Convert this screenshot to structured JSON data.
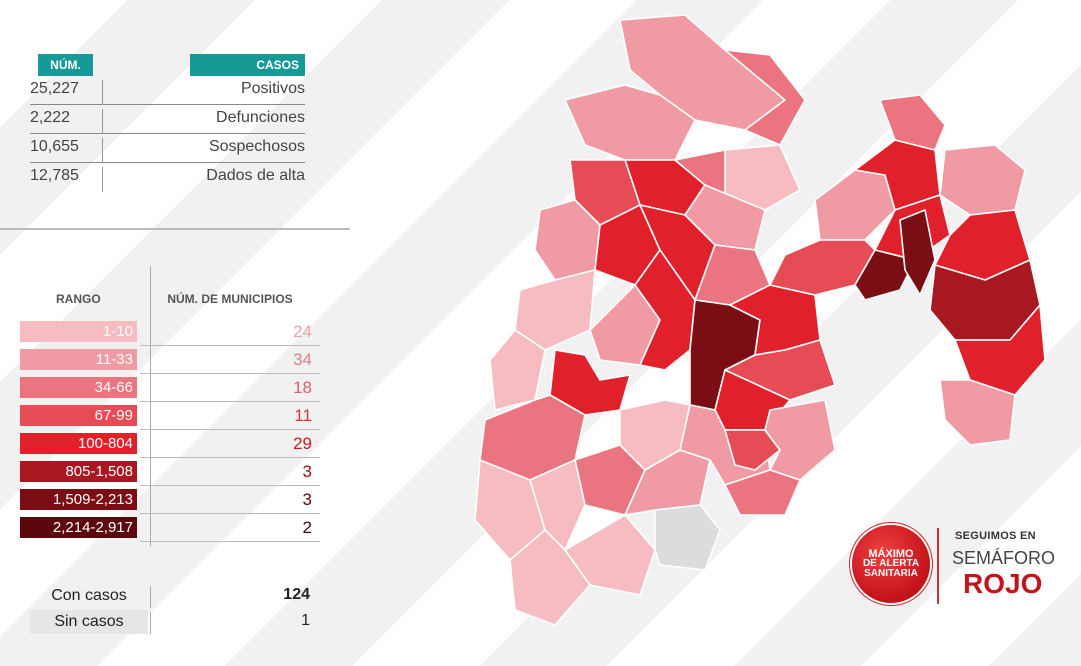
{
  "stats": {
    "header_num": "NÚM.",
    "header_casos": "CASOS",
    "rows": [
      {
        "num": "25,227",
        "label": "Positivos"
      },
      {
        "num": "2,222",
        "label": "Defunciones"
      },
      {
        "num": "10,655",
        "label": "Sospechosos"
      },
      {
        "num": "12,785",
        "label": "Dados de alta"
      }
    ]
  },
  "legend": {
    "header_rango": "RANGO",
    "header_municipios": "NÚM. DE MUNICIPIOS",
    "rows": [
      {
        "range": "1-10",
        "count": "24",
        "color": "#f7bcc2",
        "count_color": "#e8a0a8"
      },
      {
        "range": "11-33",
        "count": "34",
        "color": "#f09aa4",
        "count_color": "#dd7f8a"
      },
      {
        "range": "34-66",
        "count": "18",
        "color": "#ea7480",
        "count_color": "#d9606c"
      },
      {
        "range": "67-99",
        "count": "11",
        "color": "#e54c56",
        "count_color": "#d0343e"
      },
      {
        "range": "100-804",
        "count": "29",
        "color": "#e0202a",
        "count_color": "#cc1a24"
      },
      {
        "range": "805-1,508",
        "count": "3",
        "color": "#a81820",
        "count_color": "#8c1016"
      },
      {
        "range": "1,509-2,213",
        "count": "3",
        "color": "#7a0e14",
        "count_color": "#5c0a0e"
      },
      {
        "range": "2,214-2,917",
        "count": "2",
        "color": "#5a080c",
        "count_color": "#3e0608"
      }
    ]
  },
  "cases": {
    "con_label": "Con casos",
    "con_value": "124",
    "sin_label": "Sin casos",
    "sin_value": "1"
  },
  "badge": {
    "line1": "MÁXIMO",
    "line2": "DE ALERTA",
    "line3": "SANITARIA"
  },
  "semaforo": {
    "line1": "SEGUIMOS EN",
    "line2": "SEMÁFORO",
    "line3": "ROJO"
  },
  "map_colors": {
    "light": "#f7bcc2",
    "mid1": "#f09aa4",
    "mid2": "#ea7480",
    "mid3": "#e54c56",
    "red": "#e0202a",
    "dark1": "#a81820",
    "dark2": "#7a0e14",
    "none": "#dcdcdc"
  }
}
